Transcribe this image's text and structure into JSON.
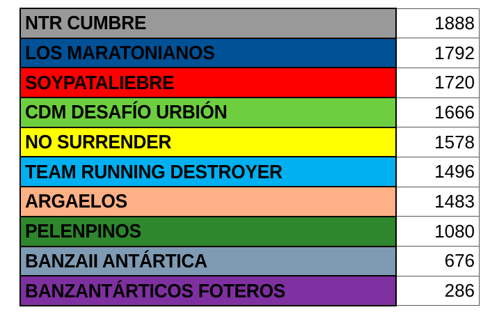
{
  "rows": [
    {
      "team": "NTR CUMBRE",
      "points": "1888",
      "color": "#999999"
    },
    {
      "team": "LOS MARATONIANOS",
      "points": "1792",
      "color": "#005196"
    },
    {
      "team": "SOYPATALIEBRE",
      "points": "1720",
      "color": "#FF0000"
    },
    {
      "team": "CDM DESAFÍO URBIÓN",
      "points": "1666",
      "color": "#6DCF3F"
    },
    {
      "team": "NO SURRENDER",
      "points": "1578",
      "color": "#FFFF00"
    },
    {
      "team": "TEAM RUNNING DESTROYER",
      "points": "1496",
      "color": "#00B0F0"
    },
    {
      "team": "ARGAELOS",
      "points": "1483",
      "color": "#FFB084"
    },
    {
      "team": "PELENPINOS",
      "points": "1080",
      "color": "#2E862D"
    },
    {
      "team": "BANZAII ANTÁRTICA",
      "points": "676",
      "color": "#7F9AB3"
    },
    {
      "team": "BANZANTÁRTICOS FOTEROS",
      "points": "286",
      "color": "#7F30A0"
    }
  ]
}
